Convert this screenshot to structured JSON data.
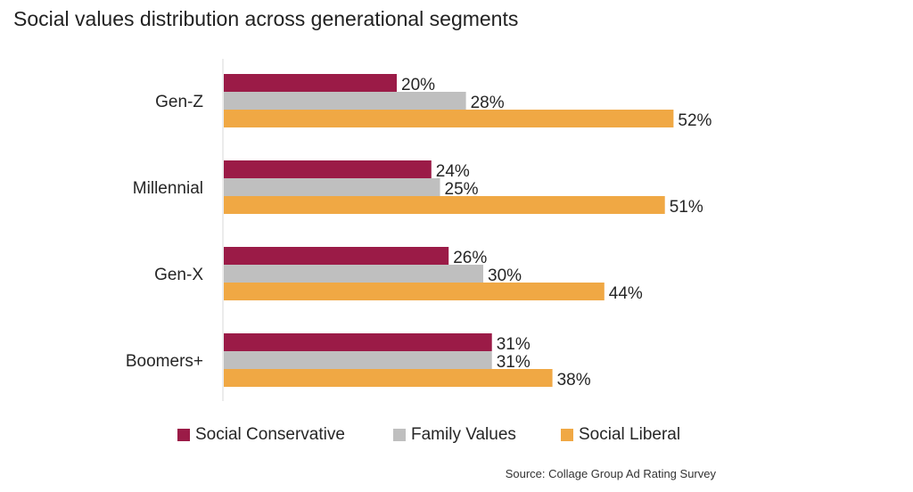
{
  "title": "Social values distribution across generational segments",
  "source": "Source: Collage Group Ad Rating Survey",
  "chart_data": {
    "type": "bar",
    "orientation": "horizontal",
    "title": "Social values distribution across generational segments",
    "xlabel": "",
    "ylabel": "",
    "categories": [
      "Gen-Z",
      "Millennial",
      "Gen-X",
      "Boomers+"
    ],
    "series": [
      {
        "name": "Social Conservative",
        "color": "#9b1b47",
        "values": [
          20,
          24,
          26,
          31
        ],
        "labels": [
          "20%",
          "24%",
          "26%",
          "31%"
        ]
      },
      {
        "name": "Family Values",
        "color": "#bfbfbf",
        "values": [
          28,
          25,
          30,
          31
        ],
        "labels": [
          "28%",
          "25%",
          "30%",
          "31%"
        ]
      },
      {
        "name": "Social Liberal",
        "color": "#f0a844",
        "values": [
          52,
          51,
          44,
          38
        ],
        "labels": [
          "52%",
          "51%",
          "44%",
          "38%"
        ]
      }
    ],
    "xlim": [
      0,
      60
    ],
    "grid": false,
    "legend_position": "bottom"
  }
}
